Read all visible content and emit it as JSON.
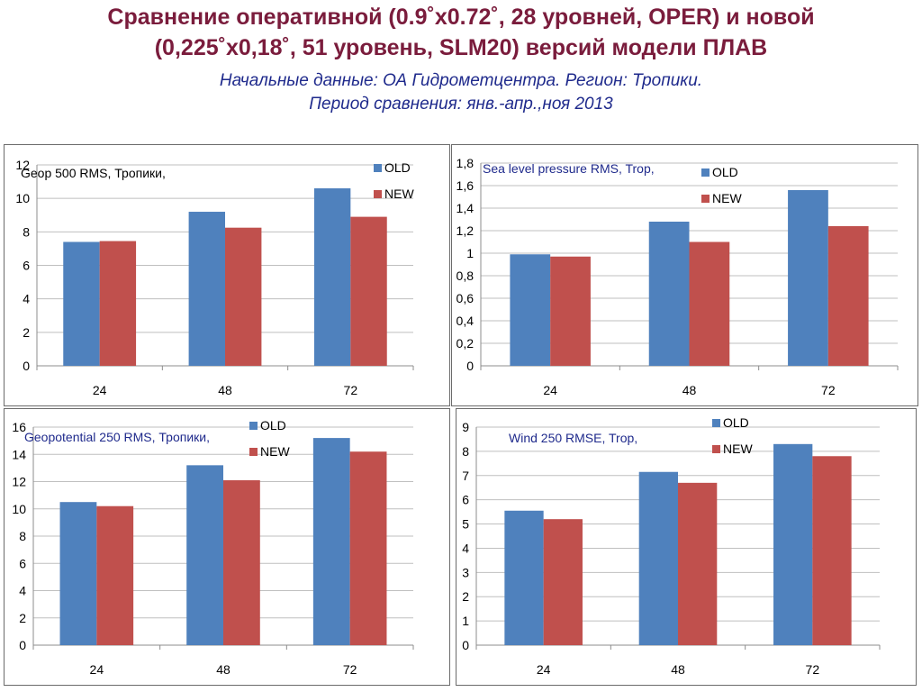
{
  "header": {
    "title_line1": "Сравнение оперативной (0.9˚x0.72˚, 28 уровней, OPER) и новой",
    "title_line2": "(0,225˚x0,18˚, 51 уровень, SLM20) версий модели ПЛАВ",
    "subtitle_line1": "Начальные данные: ОА Гидрометцентра. Регион: Тропики.",
    "subtitle_line2": "Период сравнения: янв.-апр.,ноя 2013"
  },
  "colors": {
    "old": "#4f81bd",
    "new": "#c0504d",
    "title": "#7a1c3c",
    "subtitle": "#1f2a8c",
    "chart_title_blue": "#1f2a8c"
  },
  "chart_data": [
    {
      "type": "bar",
      "title": "Geop 500 RMS, Тропики,",
      "title_color": "#000000",
      "categories": [
        "24",
        "48",
        "72"
      ],
      "series": [
        {
          "name": "OLD",
          "values": [
            7.4,
            9.2,
            10.6
          ]
        },
        {
          "name": "NEW",
          "values": [
            7.45,
            8.25,
            8.9
          ]
        }
      ],
      "ylim": [
        0,
        12
      ],
      "yticks": [
        "0",
        "2",
        "4",
        "6",
        "8",
        "10",
        "12"
      ],
      "grid": true,
      "legend": "top-right"
    },
    {
      "type": "bar",
      "title": "Sea level pressure RMS, Trop,",
      "title_color": "#1f2a8c",
      "categories": [
        "24",
        "48",
        "72"
      ],
      "series": [
        {
          "name": "OLD",
          "values": [
            0.99,
            1.28,
            1.56
          ]
        },
        {
          "name": "NEW",
          "values": [
            0.97,
            1.1,
            1.24
          ]
        }
      ],
      "ylim": [
        0,
        1.8
      ],
      "yticks": [
        "0",
        "0,2",
        "0,4",
        "0,6",
        "0,8",
        "1",
        "1,2",
        "1,4",
        "1,6",
        "1,8"
      ],
      "grid": true,
      "legend": "top-right"
    },
    {
      "type": "bar",
      "title": "Geopotential 250 RMS, Тропики,",
      "title_color": "#1f2a8c",
      "categories": [
        "24",
        "48",
        "72"
      ],
      "series": [
        {
          "name": "OLD",
          "values": [
            10.5,
            13.2,
            15.2
          ]
        },
        {
          "name": "NEW",
          "values": [
            10.2,
            12.1,
            14.2
          ]
        }
      ],
      "ylim": [
        0,
        16
      ],
      "yticks": [
        "0",
        "2",
        "4",
        "6",
        "8",
        "10",
        "12",
        "14",
        "16"
      ],
      "grid": true,
      "legend": "top-right"
    },
    {
      "type": "bar",
      "title": "Wind 250 RMSE, Trop,",
      "title_color": "#1f2a8c",
      "categories": [
        "24",
        "48",
        "72"
      ],
      "series": [
        {
          "name": "OLD",
          "values": [
            5.55,
            7.15,
            8.3
          ]
        },
        {
          "name": "NEW",
          "values": [
            5.2,
            6.7,
            7.8
          ]
        }
      ],
      "ylim": [
        0,
        9
      ],
      "yticks": [
        "0",
        "1",
        "2",
        "3",
        "4",
        "5",
        "6",
        "7",
        "8",
        "9"
      ],
      "grid": true,
      "legend": "top-right"
    }
  ]
}
